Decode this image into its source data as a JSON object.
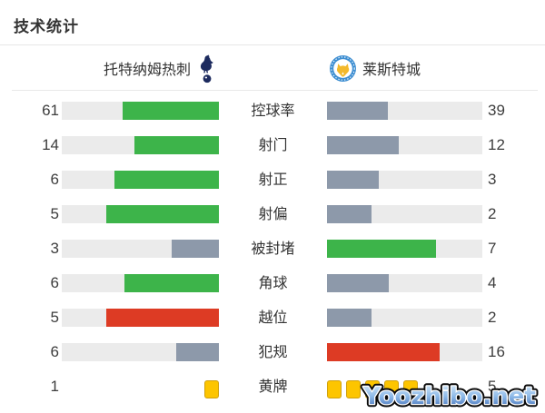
{
  "title": "技术统计",
  "teams": {
    "home": {
      "name": "托特纳姆热刺"
    },
    "away": {
      "name": "莱斯特城"
    }
  },
  "palette": {
    "green": "#3db44a",
    "slate": "#8d99aa",
    "red": "#dd3b24",
    "yellow": "#fdc500",
    "track": "#ebebeb",
    "navy": "#1c2a5e",
    "leicester_blue": "#3f8fd2",
    "fox_gold": "#f3b92c"
  },
  "stats": [
    {
      "label": "控球率",
      "type": "bar",
      "home": {
        "value": 61,
        "color": "green"
      },
      "away": {
        "value": 39,
        "color": "slate"
      }
    },
    {
      "label": "射门",
      "type": "bar",
      "home": {
        "value": 14,
        "color": "green"
      },
      "away": {
        "value": 12,
        "color": "slate"
      }
    },
    {
      "label": "射正",
      "type": "bar",
      "home": {
        "value": 6,
        "color": "green"
      },
      "away": {
        "value": 3,
        "color": "slate"
      }
    },
    {
      "label": "射偏",
      "type": "bar",
      "home": {
        "value": 5,
        "color": "green"
      },
      "away": {
        "value": 2,
        "color": "slate"
      }
    },
    {
      "label": "被封堵",
      "type": "bar",
      "home": {
        "value": 3,
        "color": "slate"
      },
      "away": {
        "value": 7,
        "color": "green"
      }
    },
    {
      "label": "角球",
      "type": "bar",
      "home": {
        "value": 6,
        "color": "green"
      },
      "away": {
        "value": 4,
        "color": "slate"
      }
    },
    {
      "label": "越位",
      "type": "bar",
      "home": {
        "value": 5,
        "color": "red"
      },
      "away": {
        "value": 2,
        "color": "slate"
      }
    },
    {
      "label": "犯规",
      "type": "bar",
      "home": {
        "value": 6,
        "color": "slate"
      },
      "away": {
        "value": 16,
        "color": "red"
      }
    },
    {
      "label": "黄牌",
      "type": "cards",
      "home": {
        "value": 1,
        "color": "yellow"
      },
      "away": {
        "value": 5,
        "color": "yellow"
      }
    }
  ],
  "chart_data": {
    "type": "bar",
    "title": "技术统计",
    "categories": [
      "控球率",
      "射门",
      "射正",
      "射偏",
      "被封堵",
      "角球",
      "越位",
      "犯规",
      "黄牌"
    ],
    "series": [
      {
        "name": "托特纳姆热刺",
        "values": [
          61,
          14,
          6,
          5,
          3,
          6,
          5,
          6,
          1
        ]
      },
      {
        "name": "莱斯特城",
        "values": [
          39,
          12,
          3,
          2,
          7,
          4,
          2,
          16,
          5
        ]
      }
    ],
    "layout": "mirrored horizontal bars, labels centered, bar length proportional to value share of row total",
    "legend_position": "top"
  },
  "watermark": {
    "text": "Yoozhibo.net"
  }
}
